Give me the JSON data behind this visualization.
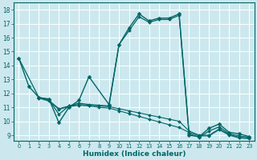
{
  "title": "",
  "xlabel": "Humidex (Indice chaleur)",
  "bg_color": "#cce8ee",
  "grid_color": "#ffffff",
  "line_color": "#006666",
  "xlim": [
    -0.5,
    23.5
  ],
  "ylim": [
    8.6,
    18.5
  ],
  "xticks": [
    0,
    1,
    2,
    3,
    4,
    5,
    6,
    7,
    8,
    9,
    10,
    11,
    12,
    13,
    14,
    15,
    16,
    17,
    18,
    19,
    20,
    21,
    22,
    23
  ],
  "yticks": [
    9,
    10,
    11,
    12,
    13,
    14,
    15,
    16,
    17,
    18
  ],
  "lines": [
    {
      "x": [
        0,
        1,
        2,
        3,
        4,
        5,
        6,
        7,
        9,
        10,
        11,
        12,
        13,
        14,
        15,
        16,
        17,
        18,
        19,
        20,
        21,
        22,
        23
      ],
      "y": [
        14.5,
        12.5,
        11.7,
        11.6,
        9.9,
        11.0,
        11.5,
        13.2,
        11.2,
        15.5,
        16.7,
        17.7,
        17.2,
        17.4,
        17.4,
        17.7,
        9.0,
        8.9,
        9.5,
        9.8,
        9.2,
        9.1,
        8.9
      ],
      "lw": 1.0,
      "ms": 2.5
    },
    {
      "x": [
        0,
        2,
        3,
        4,
        5,
        6,
        7,
        9,
        10,
        11,
        12,
        13,
        14,
        15,
        16,
        17,
        18,
        19,
        20,
        21,
        22,
        23
      ],
      "y": [
        14.5,
        11.7,
        11.55,
        10.5,
        11.1,
        11.3,
        11.2,
        11.1,
        15.5,
        16.5,
        17.5,
        17.1,
        17.3,
        17.3,
        17.6,
        9.1,
        8.85,
        9.3,
        9.6,
        9.1,
        8.95,
        8.85
      ],
      "lw": 0.9,
      "ms": 2.0
    },
    {
      "x": [
        2,
        3,
        4,
        5,
        6,
        7,
        8,
        9,
        10,
        11,
        12,
        13,
        14,
        15,
        16,
        17,
        18,
        19,
        20,
        21,
        22,
        23
      ],
      "y": [
        11.7,
        11.5,
        10.9,
        11.1,
        11.2,
        11.15,
        11.1,
        11.05,
        10.9,
        10.75,
        10.6,
        10.45,
        10.3,
        10.15,
        10.0,
        9.3,
        9.0,
        9.0,
        9.45,
        9.05,
        8.85,
        8.8
      ],
      "lw": 0.8,
      "ms": 2.0
    },
    {
      "x": [
        2,
        3,
        4,
        5,
        6,
        7,
        8,
        9,
        10,
        11,
        12,
        13,
        14,
        15,
        16,
        17,
        18,
        19,
        20,
        21,
        22,
        23
      ],
      "y": [
        11.65,
        11.45,
        10.85,
        11.05,
        11.15,
        11.1,
        11.0,
        10.95,
        10.75,
        10.55,
        10.35,
        10.15,
        9.95,
        9.75,
        9.55,
        9.2,
        8.95,
        8.95,
        9.4,
        9.0,
        8.8,
        8.75
      ],
      "lw": 0.8,
      "ms": 2.0
    }
  ]
}
